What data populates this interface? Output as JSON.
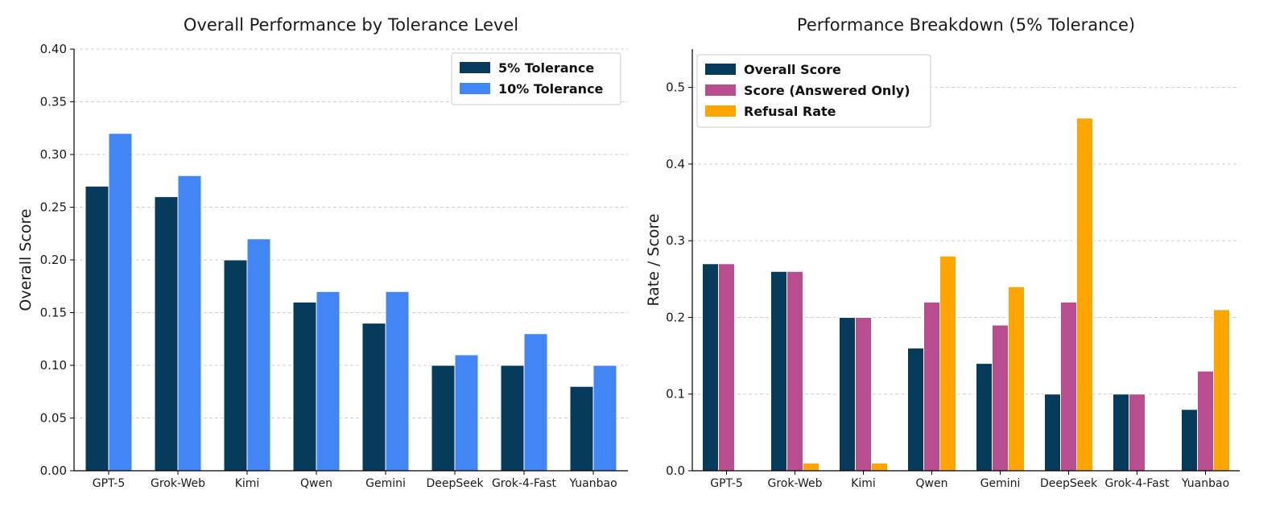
{
  "chart_data": [
    {
      "type": "bar",
      "title": "Overall Performance by Tolerance Level",
      "xlabel": "",
      "ylabel": "Overall Score",
      "ylim": [
        0,
        0.4
      ],
      "yticks": [
        "0.00",
        "0.05",
        "0.10",
        "0.15",
        "0.20",
        "0.25",
        "0.30",
        "0.35",
        "0.40"
      ],
      "categories": [
        "GPT-5",
        "Grok-Web",
        "Kimi",
        "Qwen",
        "Gemini",
        "DeepSeek",
        "Grok-4-Fast",
        "Yuanbao"
      ],
      "grid": true,
      "legend_position": "top-right",
      "series": [
        {
          "name": "5% Tolerance",
          "color": "#073B5B",
          "values": [
            0.27,
            0.26,
            0.2,
            0.16,
            0.14,
            0.1,
            0.1,
            0.08
          ]
        },
        {
          "name": "10% Tolerance",
          "color": "#4285F4",
          "values": [
            0.32,
            0.28,
            0.22,
            0.17,
            0.17,
            0.11,
            0.13,
            0.1
          ]
        }
      ]
    },
    {
      "type": "bar",
      "title": "Performance Breakdown (5% Tolerance)",
      "xlabel": "",
      "ylabel": "Rate / Score",
      "ylim": [
        0,
        0.55
      ],
      "yticks": [
        "0.0",
        "0.1",
        "0.2",
        "0.3",
        "0.4",
        "0.5"
      ],
      "categories": [
        "GPT-5",
        "Grok-Web",
        "Kimi",
        "Qwen",
        "Gemini",
        "DeepSeek",
        "Grok-4-Fast",
        "Yuanbao"
      ],
      "grid": true,
      "legend_position": "top-left",
      "series": [
        {
          "name": "Overall Score",
          "color": "#073B5B",
          "values": [
            0.27,
            0.26,
            0.2,
            0.16,
            0.14,
            0.1,
            0.1,
            0.08
          ]
        },
        {
          "name": "Score (Answered Only)",
          "color": "#B84E90",
          "values": [
            0.27,
            0.26,
            0.2,
            0.22,
            0.19,
            0.22,
            0.1,
            0.13
          ]
        },
        {
          "name": "Refusal Rate",
          "color": "#FFA500",
          "values": [
            0.0,
            0.01,
            0.01,
            0.28,
            0.24,
            0.46,
            0.0,
            0.21
          ]
        }
      ]
    }
  ]
}
